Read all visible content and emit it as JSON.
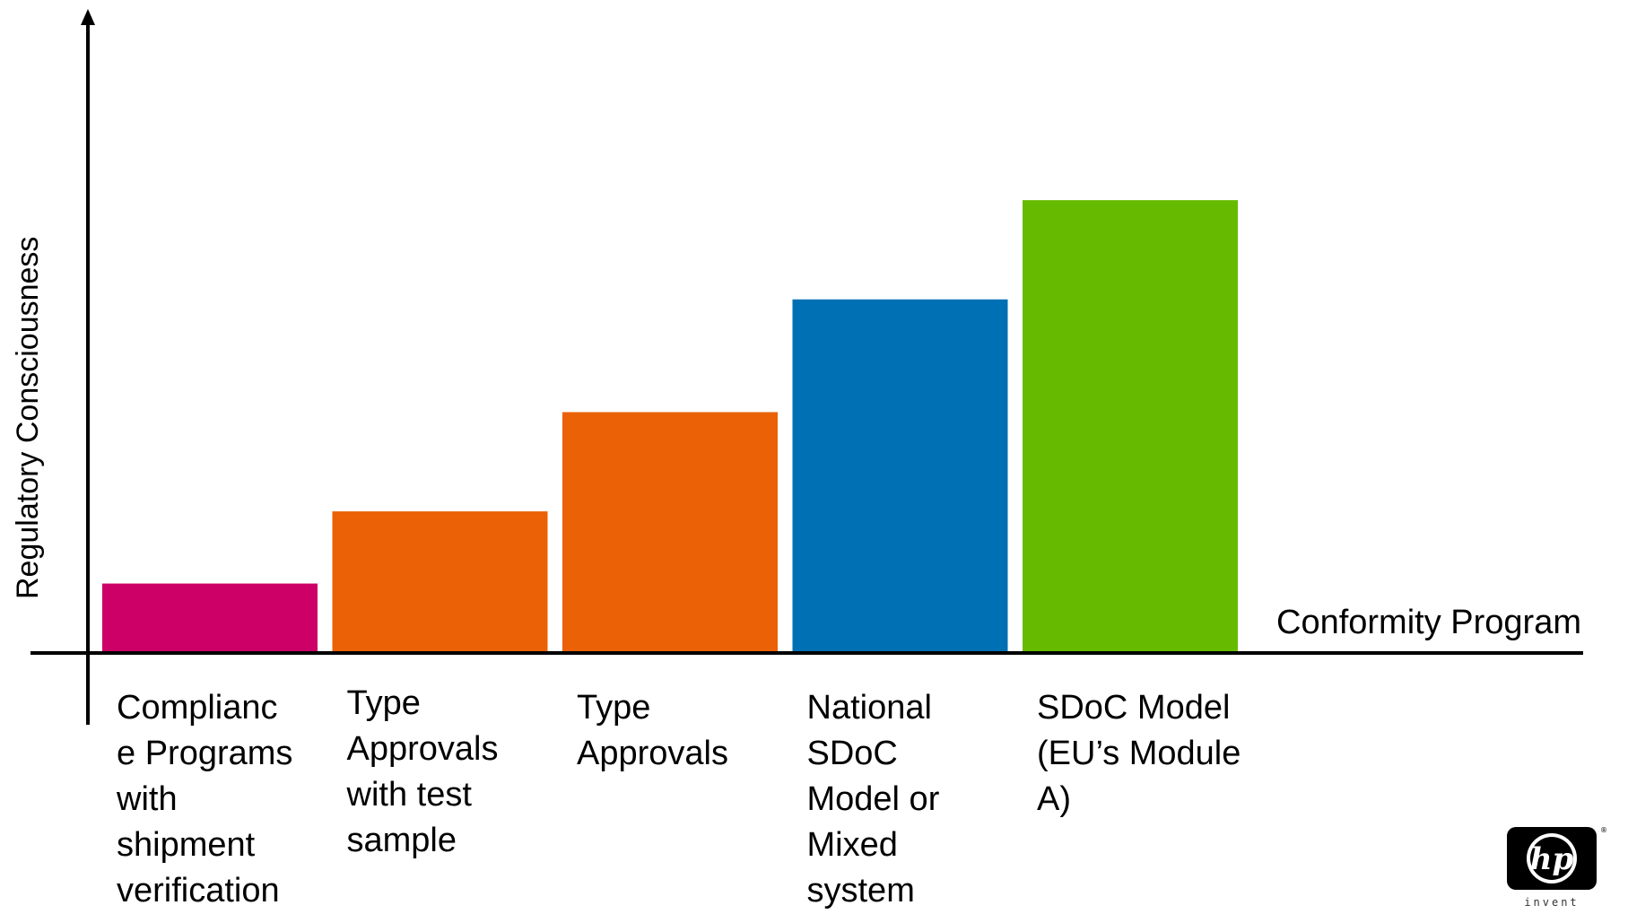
{
  "chart_data": {
    "type": "bar",
    "categories": [
      "Complianc\ne Programs\nwith\nshipment\nverification",
      "Type\nApprovals\nwith test\nsample",
      "Type\nApprovals",
      "National\nSDoC\nModel or\nMixed\nsystem",
      "SDoC Model\n(EU’s Module\nA)"
    ],
    "values": [
      15,
      31,
      53,
      78,
      100
    ],
    "ylim": [
      0,
      140
    ],
    "xlabel": "Conformity Program",
    "ylabel": "Regulatory Consciousness",
    "colors": [
      "#cc0066",
      "#ea6106",
      "#ea6106",
      "#0070b4",
      "#66bb00"
    ],
    "grid": false,
    "axis_ticks": false
  },
  "logo": {
    "brand": "hp",
    "tagline": "invent",
    "icon": "hp-logo-icon"
  }
}
